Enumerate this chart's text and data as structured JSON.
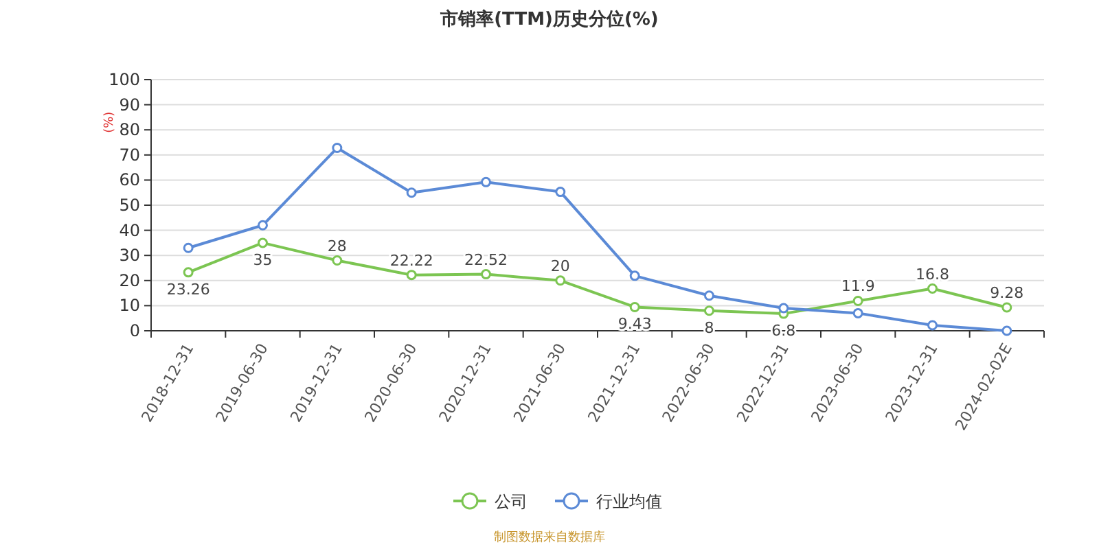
{
  "chart_data": {
    "type": "line",
    "title": "市销率(TTM)历史分位(%)",
    "ylabel": "(%)",
    "categories": [
      "2018-12-31",
      "2019-06-30",
      "2019-12-31",
      "2020-06-30",
      "2020-12-31",
      "2021-06-30",
      "2021-12-31",
      "2022-06-30",
      "2022-12-31",
      "2023-06-30",
      "2023-12-31",
      "2024-02-02E"
    ],
    "series": [
      {
        "name": "公司",
        "color": "#7cc552",
        "values": [
          23.26,
          35,
          28,
          22.22,
          22.52,
          20,
          9.43,
          8,
          6.8,
          11.9,
          16.8,
          9.28
        ],
        "value_labels": [
          "23.26",
          "35",
          "28",
          "22.22",
          "22.52",
          "20",
          "9.43",
          "8",
          "6.8",
          "11.9",
          "16.8",
          "9.28"
        ]
      },
      {
        "name": "行业均值",
        "color": "#5b8ad6",
        "values": [
          33,
          42,
          72.8,
          55,
          59.2,
          55.3,
          21.9,
          14,
          9,
          7,
          2.2,
          0
        ]
      }
    ],
    "ylim": [
      0,
      100
    ],
    "yticks": [
      0,
      10,
      20,
      30,
      40,
      50,
      60,
      70,
      80,
      90,
      100
    ],
    "grid": "y",
    "legend": "bottom",
    "marker": "circle",
    "line_style": "solid",
    "annotations": [
      "制图数据来自数据库"
    ]
  }
}
